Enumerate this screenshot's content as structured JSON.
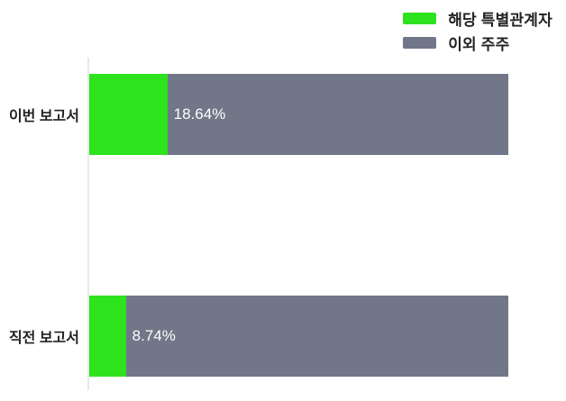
{
  "chart_data": {
    "type": "bar",
    "orientation": "horizontal",
    "stacked": true,
    "title": "",
    "xlabel": "",
    "ylabel": "",
    "xlim": [
      0,
      100
    ],
    "grid": false,
    "legend_position": "top-right",
    "categories": [
      "이번 보고서",
      "직전 보고서"
    ],
    "series": [
      {
        "name": "해당 특별관계자",
        "color": "#2de31d",
        "values": [
          18.64,
          8.74
        ]
      },
      {
        "name": "이외 주주",
        "color": "#717688",
        "values": [
          81.36,
          91.26
        ]
      }
    ],
    "value_labels": [
      "18.64%",
      "8.74%"
    ]
  },
  "colors": {
    "axis_line": "#e8e8e8",
    "category_text": "#1f1f1f",
    "value_text": "#ffffff",
    "background": "#ffffff"
  }
}
